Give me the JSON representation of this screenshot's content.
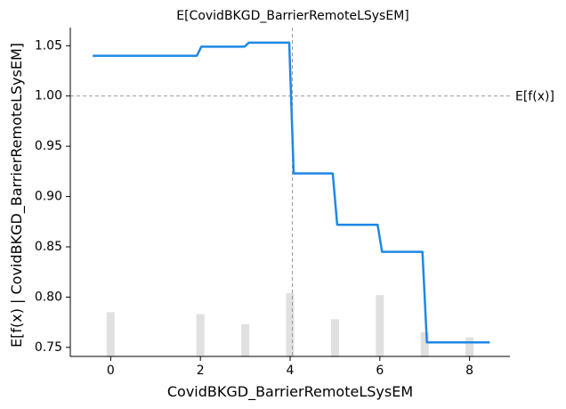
{
  "chart_data": {
    "type": "line",
    "title": "E[CovidBKGD_BarrierRemoteLSysEM]",
    "xlabel": "CovidBKGD_BarrierRemoteLSysEM",
    "ylabel": "E[f(x) | CovidBKGD_BarrierRemoteLSysEM]",
    "xlim": [
      -0.9,
      8.9
    ],
    "ylim": [
      0.741,
      1.068
    ],
    "xticks": [
      0,
      2,
      4,
      6,
      8
    ],
    "yticks": [
      0.75,
      0.8,
      0.85,
      0.9,
      0.95,
      1.0,
      1.05
    ],
    "ytick_labels": [
      "0.75",
      "0.80",
      "0.85",
      "0.90",
      "0.95",
      "1.00",
      "1.05"
    ],
    "grid": false,
    "line_color": "#1E88E5",
    "series": [
      {
        "x": [
          -0.4,
          1.92,
          2.02,
          2.98,
          3.08,
          3.98,
          4.08,
          4.95,
          5.05,
          5.95,
          6.05,
          6.95,
          7.05,
          8.45
        ],
        "values": [
          1.04,
          1.04,
          1.049,
          1.049,
          1.053,
          1.053,
          0.923,
          0.923,
          0.872,
          0.872,
          0.845,
          0.845,
          0.755,
          0.755
        ]
      }
    ],
    "histogram": {
      "x": [
        0,
        2,
        3,
        4,
        5,
        6,
        7,
        8
      ],
      "heights": [
        0.785,
        0.783,
        0.773,
        0.804,
        0.778,
        0.802,
        0.765,
        0.76
      ],
      "color": "#E0E0E0"
    },
    "reference_lines": {
      "horizontal": {
        "y": 1.0,
        "label": "E[f(x)]"
      },
      "vertical": {
        "x": 4.05
      }
    }
  }
}
